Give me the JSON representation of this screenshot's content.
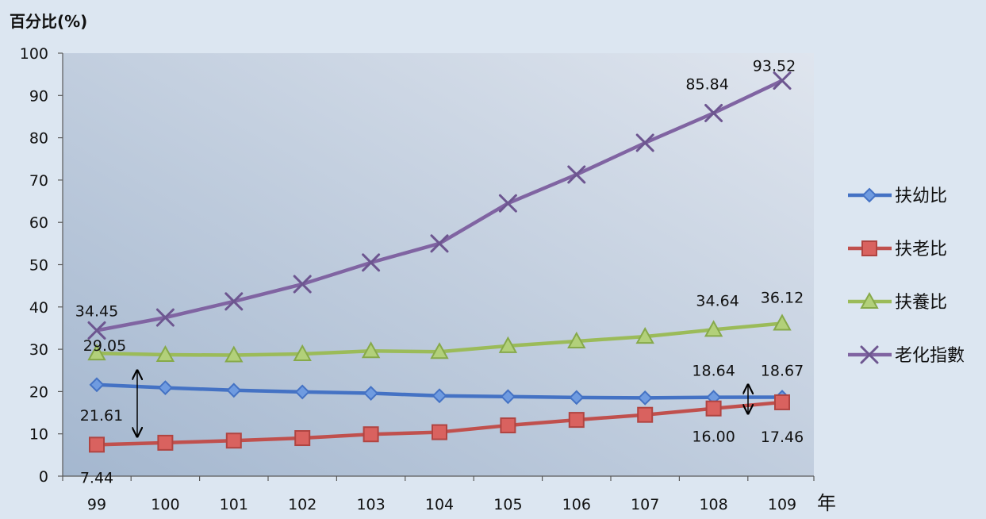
{
  "chart_data": {
    "type": "line",
    "ylabel": "百分比(%)",
    "xlabel": "年",
    "ylim": [
      0,
      100
    ],
    "yticks": [
      0,
      10,
      20,
      30,
      40,
      50,
      60,
      70,
      80,
      90,
      100
    ],
    "categories": [
      "99",
      "100",
      "101",
      "102",
      "103",
      "104",
      "105",
      "106",
      "107",
      "108",
      "109"
    ],
    "legend_position": "right",
    "series": [
      {
        "name": "扶幼比",
        "color": "#4472c4",
        "marker": "diamond",
        "values": [
          21.61,
          20.9,
          20.3,
          19.9,
          19.6,
          19.0,
          18.8,
          18.6,
          18.5,
          18.64,
          18.67
        ]
      },
      {
        "name": "扶老比",
        "color": "#c0504d",
        "marker": "square",
        "values": [
          7.44,
          7.9,
          8.4,
          9.0,
          9.9,
          10.4,
          12.0,
          13.3,
          14.5,
          16.0,
          17.46
        ]
      },
      {
        "name": "扶養比",
        "color": "#9bbb59",
        "marker": "triangle",
        "values": [
          29.05,
          28.7,
          28.6,
          28.9,
          29.6,
          29.4,
          30.8,
          31.9,
          33.0,
          34.64,
          36.12
        ]
      },
      {
        "name": "老化指數",
        "color": "#8064a2",
        "marker": "x",
        "values": [
          34.45,
          37.5,
          41.3,
          45.4,
          50.5,
          55.0,
          64.5,
          71.3,
          78.8,
          85.84,
          93.52
        ]
      }
    ],
    "annotations": [
      {
        "series": 3,
        "index": 0,
        "text": "34.45"
      },
      {
        "series": 3,
        "index": 9,
        "text": "85.84"
      },
      {
        "series": 3,
        "index": 10,
        "text": "93.52"
      },
      {
        "series": 2,
        "index": 0,
        "text": "29.05"
      },
      {
        "series": 2,
        "index": 9,
        "text": "34.64"
      },
      {
        "series": 2,
        "index": 10,
        "text": "36.12"
      },
      {
        "series": 0,
        "index": 0,
        "text": "21.61"
      },
      {
        "series": 0,
        "index": 9,
        "text": "18.64"
      },
      {
        "series": 0,
        "index": 10,
        "text": "18.67"
      },
      {
        "series": 1,
        "index": 0,
        "text": "7.44"
      },
      {
        "series": 1,
        "index": 9,
        "text": "16.00"
      },
      {
        "series": 1,
        "index": 10,
        "text": "17.46"
      }
    ]
  }
}
